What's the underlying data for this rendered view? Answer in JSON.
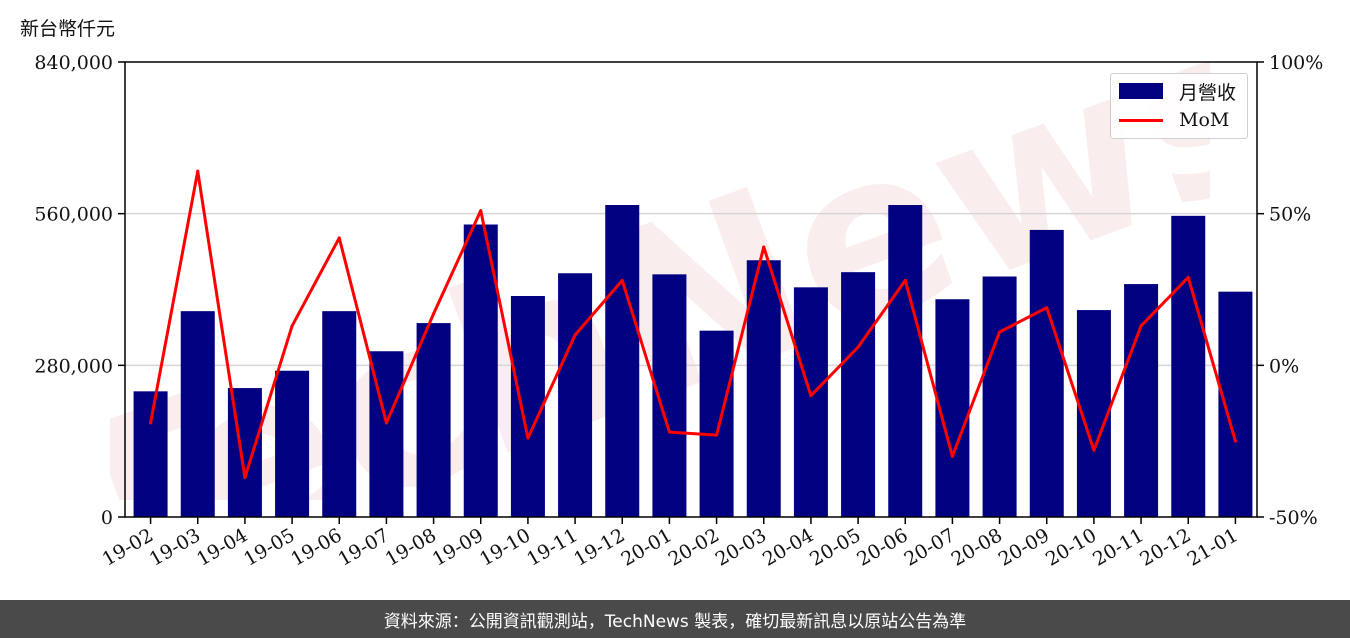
{
  "chart_data": {
    "type": "bar+line",
    "unit_label": "新台幣仟元",
    "categories": [
      "19-02",
      "19-03",
      "19-04",
      "19-05",
      "19-06",
      "19-07",
      "19-08",
      "19-09",
      "19-10",
      "19-11",
      "19-12",
      "20-01",
      "20-02",
      "20-03",
      "20-04",
      "20-05",
      "20-06",
      "20-07",
      "20-08",
      "20-09",
      "20-10",
      "20-11",
      "20-12",
      "21-01"
    ],
    "series": [
      {
        "name": "月營收",
        "type": "bar",
        "axis": "left",
        "color": "#000080",
        "values": [
          232000,
          380000,
          238000,
          270000,
          380000,
          306000,
          358000,
          540000,
          408000,
          450000,
          576000,
          448000,
          344000,
          474000,
          424000,
          452000,
          576000,
          402000,
          444000,
          530000,
          382000,
          430000,
          556000,
          416000
        ]
      },
      {
        "name": "MoM",
        "type": "line",
        "axis": "right",
        "color": "#ff0000",
        "values": [
          -19,
          64,
          -37,
          13,
          42,
          -19,
          17,
          51,
          -24,
          10,
          28,
          -22,
          -23,
          39,
          -10,
          6,
          28,
          -30,
          11,
          19,
          -28,
          13,
          29,
          -25
        ]
      }
    ],
    "y_left": {
      "min": 0,
      "max": 840000,
      "ticks": [
        "0",
        "280,000",
        "560,000",
        "840,000"
      ],
      "tick_values": [
        0,
        280000,
        560000,
        840000
      ]
    },
    "y_right": {
      "min": -50,
      "max": 100,
      "ticks": [
        "-50%",
        "0%",
        "50%",
        "100%"
      ],
      "tick_values": [
        -50,
        0,
        50,
        100
      ]
    },
    "grid": "horizontal",
    "legend_position": "top-right"
  },
  "legend": {
    "bar_label": "月營收",
    "line_label": "MoM"
  },
  "footer": {
    "text": "資料來源：公開資訊觀測站，TechNews 製表，確切最新訊息以原站公告為準"
  },
  "watermark": {
    "text": "TechNews"
  }
}
